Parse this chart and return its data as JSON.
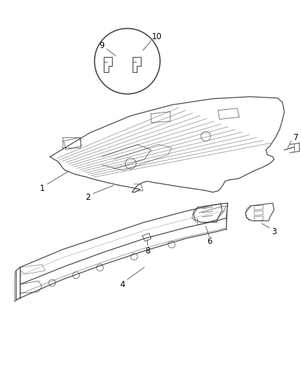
{
  "background_color": "#ffffff",
  "figure_width": 4.39,
  "figure_height": 5.33,
  "dpi": 100,
  "line_color": "#444444",
  "thin_lw": 0.5,
  "main_lw": 0.9
}
